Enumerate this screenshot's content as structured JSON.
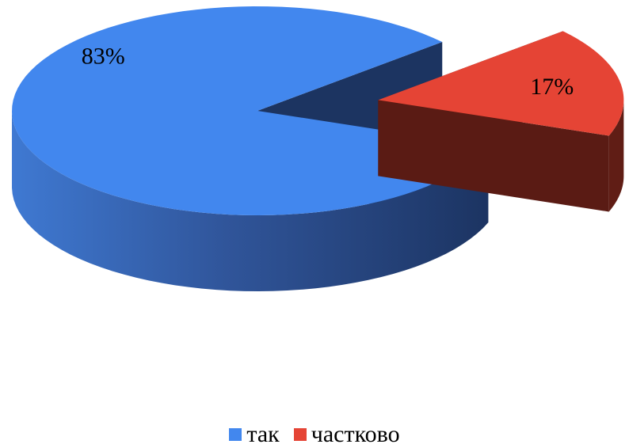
{
  "chart_data": {
    "type": "pie",
    "title": "",
    "categories": [
      "так",
      "частково"
    ],
    "values": [
      83,
      17
    ],
    "labels": [
      "83%",
      "17%"
    ],
    "colors": {
      "так": "#4287ee",
      "частково": "#e54435"
    },
    "exploded": [
      "частково"
    ],
    "style": "3d",
    "legend_position": "bottom"
  },
  "legend": {
    "items": [
      {
        "label": "так",
        "color": "#4287ee"
      },
      {
        "label": "частково",
        "color": "#e54435"
      }
    ]
  }
}
